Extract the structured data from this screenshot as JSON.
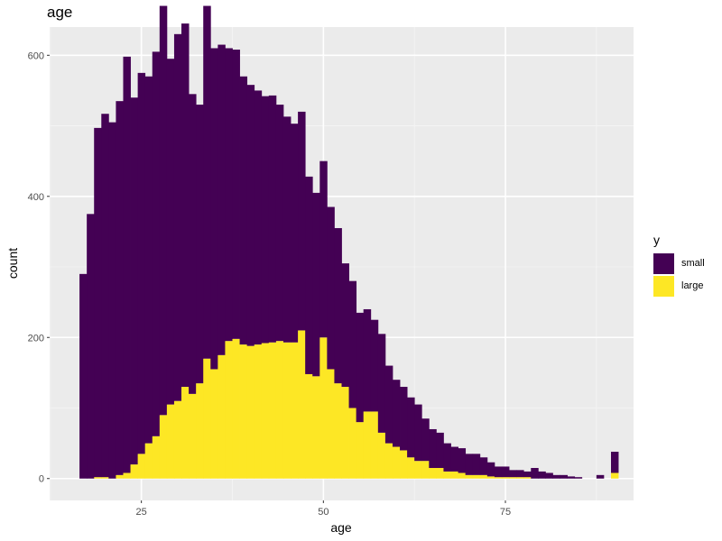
{
  "chart_data": {
    "type": "bar",
    "title": "age",
    "xlabel": "age",
    "ylabel": "count",
    "xlim": [
      12.4,
      92.6
    ],
    "ylim": [
      -31,
      640
    ],
    "x_ticks": [
      25,
      50,
      75
    ],
    "y_ticks": [
      0,
      200,
      400,
      600
    ],
    "bin_start": 16.5,
    "bin_width": 1,
    "stacked": true,
    "grid": true,
    "legend": {
      "title": "y",
      "placement": "right"
    },
    "x": [
      17,
      18,
      19,
      20,
      21,
      22,
      23,
      24,
      25,
      26,
      27,
      28,
      29,
      30,
      31,
      32,
      33,
      34,
      35,
      36,
      37,
      38,
      39,
      40,
      41,
      42,
      43,
      44,
      45,
      46,
      47,
      48,
      49,
      50,
      51,
      52,
      53,
      54,
      55,
      56,
      57,
      58,
      59,
      60,
      61,
      62,
      63,
      64,
      65,
      66,
      67,
      68,
      69,
      70,
      71,
      72,
      73,
      74,
      75,
      76,
      77,
      78,
      79,
      80,
      81,
      82,
      83,
      84,
      85,
      86,
      87,
      88,
      89,
      90
    ],
    "series": [
      {
        "name": "small",
        "color": "#440154",
        "values": [
          290,
          375,
          495,
          515,
          505,
          530,
          590,
          520,
          540,
          520,
          545,
          580,
          490,
          520,
          515,
          425,
          395,
          500,
          455,
          440,
          415,
          410,
          380,
          370,
          360,
          350,
          350,
          335,
          320,
          310,
          310,
          280,
          260,
          250,
          230,
          220,
          175,
          180,
          155,
          145,
          130,
          140,
          110,
          95,
          90,
          85,
          80,
          60,
          55,
          50,
          40,
          35,
          35,
          30,
          30,
          25,
          20,
          15,
          15,
          10,
          10,
          8,
          15,
          10,
          8,
          5,
          5,
          3,
          2,
          0,
          0,
          5,
          0,
          30
        ]
      },
      {
        "name": "large",
        "color": "#fde725",
        "values": [
          0,
          0,
          2,
          2,
          0,
          5,
          8,
          20,
          35,
          50,
          60,
          90,
          105,
          110,
          130,
          120,
          135,
          170,
          155,
          175,
          195,
          198,
          190,
          188,
          190,
          192,
          193,
          195,
          193,
          193,
          210,
          148,
          145,
          200,
          155,
          135,
          130,
          100,
          80,
          95,
          95,
          65,
          50,
          45,
          40,
          30,
          25,
          25,
          15,
          15,
          10,
          10,
          8,
          5,
          5,
          5,
          3,
          2,
          2,
          2,
          2,
          2,
          0,
          0,
          0,
          0,
          0,
          0,
          0,
          0,
          0,
          0,
          0,
          8
        ]
      }
    ]
  }
}
